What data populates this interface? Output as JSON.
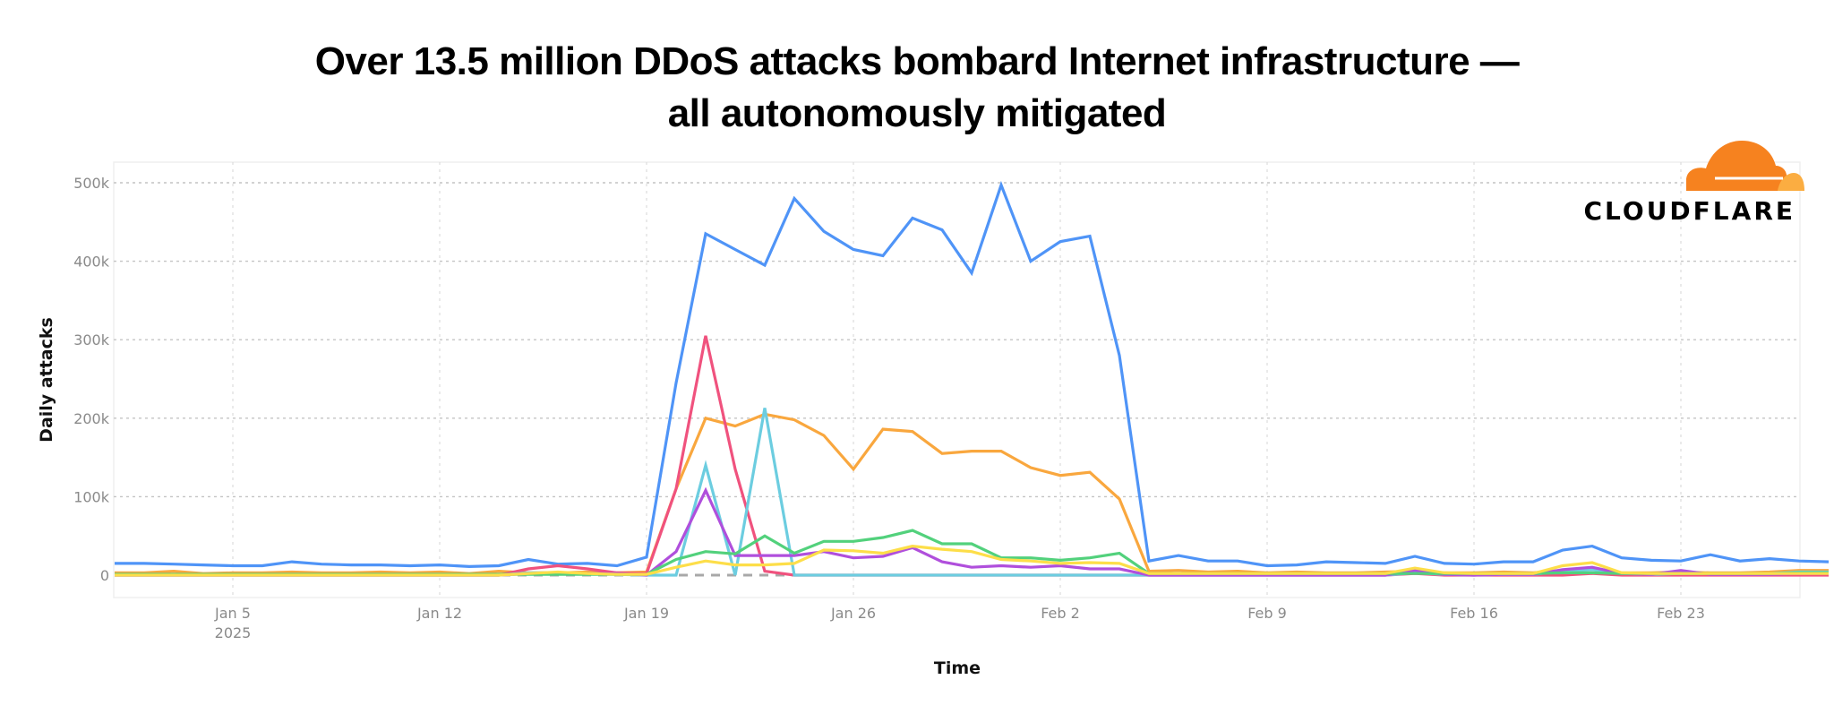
{
  "title_line1": "Over 13.5 million DDoS attacks bombard Internet infrastructure —",
  "title_line2": "all autonomously mitigated",
  "logo": {
    "text": "CLOUDFLARE",
    "cloud_color": "#F6821F",
    "cloud_accent": "#FBAD41"
  },
  "chart_data": {
    "type": "line",
    "title": "Over 13.5 million DDoS attacks bombard Internet infrastructure — all autonomously mitigated",
    "xlabel": "Time",
    "ylabel": "Daily attacks",
    "ylim": [
      0,
      500000
    ],
    "yticks": [
      "0",
      "100k",
      "200k",
      "300k",
      "400k",
      "500k"
    ],
    "xticks": [
      "Jan 5\n2025",
      "Jan 12",
      "Jan 19",
      "Jan 26",
      "Feb 2",
      "Feb 9",
      "Feb 16",
      "Feb 23"
    ],
    "grid": true,
    "legend": "none",
    "x_start": "2025-01-01",
    "x_end": "2025-02-28",
    "unit": "thousands of attacks per day",
    "series": [
      {
        "name": "blue",
        "color": "#4F94F7",
        "values": [
          15,
          15,
          14,
          13,
          12,
          12,
          17,
          14,
          13,
          13,
          12,
          13,
          11,
          12,
          20,
          14,
          15,
          12,
          23,
          245,
          435,
          415,
          395,
          480,
          438,
          415,
          407,
          455,
          440,
          385,
          497,
          400,
          425,
          432,
          280,
          18,
          25,
          18,
          18,
          12,
          13,
          17,
          16,
          15,
          24,
          15,
          14,
          17,
          17,
          32,
          37,
          22,
          19,
          18,
          26,
          18,
          21,
          18,
          17
        ]
      },
      {
        "name": "orange",
        "color": "#F9A73E",
        "values": [
          3,
          3,
          5,
          2,
          3,
          3,
          4,
          3,
          3,
          4,
          3,
          4,
          2,
          5,
          3,
          3,
          4,
          3,
          4,
          110,
          200,
          190,
          205,
          198,
          178,
          135,
          186,
          183,
          155,
          158,
          158,
          137,
          127,
          131,
          97,
          5,
          6,
          4,
          5,
          3,
          4,
          3,
          3,
          4,
          5,
          3,
          3,
          4,
          3,
          6,
          8,
          3,
          3,
          4,
          3,
          3,
          4,
          6,
          6
        ]
      },
      {
        "name": "pink",
        "color": "#F0527E",
        "values": [
          0,
          0,
          0,
          0,
          0,
          0,
          0,
          0,
          0,
          0,
          0,
          0,
          0,
          0,
          8,
          12,
          8,
          3,
          2,
          110,
          305,
          135,
          5,
          0,
          0,
          0,
          0,
          0,
          0,
          0,
          0,
          0,
          0,
          0,
          0,
          0,
          0,
          0,
          0,
          0,
          0,
          0,
          0,
          0,
          2,
          0,
          0,
          0,
          0,
          0,
          2,
          0,
          0,
          0,
          0,
          0,
          0,
          0,
          0
        ]
      },
      {
        "name": "cyan",
        "color": "#6CCDE0",
        "values": [
          0,
          0,
          0,
          0,
          0,
          0,
          0,
          0,
          0,
          0,
          0,
          0,
          0,
          0,
          3,
          3,
          2,
          1,
          0,
          0,
          140,
          0,
          213,
          0,
          0,
          0,
          0,
          0,
          0,
          0,
          0,
          0,
          0,
          0,
          0,
          0,
          0,
          0,
          0,
          0,
          0,
          0,
          0,
          0,
          3,
          1,
          0,
          1,
          1,
          5,
          7,
          2,
          1,
          2,
          2,
          2,
          2,
          4,
          4
        ]
      },
      {
        "name": "purple",
        "color": "#B04FDC",
        "values": [
          0,
          0,
          0,
          0,
          0,
          0,
          0,
          0,
          0,
          0,
          0,
          0,
          0,
          0,
          2,
          2,
          2,
          2,
          0,
          30,
          108,
          25,
          25,
          25,
          30,
          22,
          24,
          35,
          17,
          10,
          12,
          10,
          12,
          8,
          8,
          0,
          0,
          0,
          0,
          0,
          0,
          0,
          0,
          0,
          6,
          1,
          0,
          1,
          1,
          7,
          10,
          2,
          1,
          6,
          1,
          1,
          1,
          2,
          2
        ]
      },
      {
        "name": "green",
        "color": "#52D17C",
        "values": [
          1,
          1,
          1,
          1,
          1,
          1,
          1,
          1,
          1,
          1,
          1,
          1,
          1,
          1,
          1,
          1,
          1,
          1,
          1,
          20,
          30,
          27,
          50,
          28,
          43,
          43,
          48,
          57,
          40,
          40,
          22,
          22,
          19,
          22,
          28,
          2,
          2,
          2,
          2,
          2,
          2,
          2,
          2,
          2,
          2,
          2,
          2,
          2,
          2,
          3,
          3,
          2,
          2,
          2,
          2,
          2,
          2,
          3,
          3
        ]
      },
      {
        "name": "yellow",
        "color": "#FDDE49",
        "values": [
          0,
          0,
          0,
          0,
          0,
          0,
          0,
          0,
          0,
          0,
          0,
          0,
          0,
          0,
          2,
          4,
          2,
          1,
          1,
          10,
          18,
          13,
          13,
          15,
          32,
          31,
          28,
          37,
          33,
          30,
          20,
          18,
          15,
          16,
          15,
          2,
          2,
          2,
          2,
          2,
          2,
          2,
          2,
          2,
          9,
          3,
          2,
          2,
          2,
          12,
          16,
          3,
          2,
          2,
          2,
          2,
          2,
          2,
          2
        ]
      },
      {
        "name": "gray-dashed",
        "color": "#A8A8A8",
        "dashed": true,
        "values": [
          0,
          0,
          0,
          0,
          0,
          0,
          0,
          0,
          0,
          0,
          0,
          0,
          0,
          0,
          0,
          0,
          0,
          0,
          0,
          0,
          0,
          0,
          0,
          0,
          0,
          null,
          null,
          null,
          null,
          null,
          null,
          null,
          null,
          null,
          null,
          null,
          null,
          null,
          null,
          null,
          null,
          null,
          null,
          null,
          null,
          null,
          null,
          null,
          null,
          null,
          null,
          null,
          null,
          null,
          null,
          null,
          null,
          null,
          null
        ]
      }
    ]
  }
}
